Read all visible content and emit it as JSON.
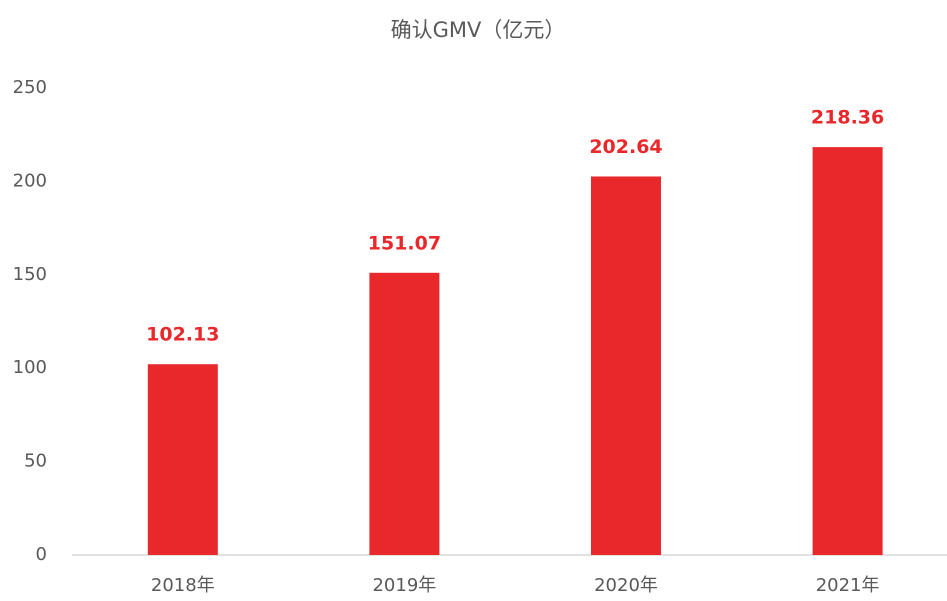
{
  "chart_data": {
    "type": "bar",
    "title": "确认GMV（亿元）",
    "categories": [
      "2018年",
      "2019年",
      "2020年",
      "2021年"
    ],
    "values": [
      102.13,
      151.07,
      202.64,
      218.36
    ],
    "color": "#e8282b",
    "ylim": [
      0,
      250
    ],
    "yticks": [
      0,
      50,
      100,
      150,
      200,
      250
    ],
    "grid": false
  }
}
